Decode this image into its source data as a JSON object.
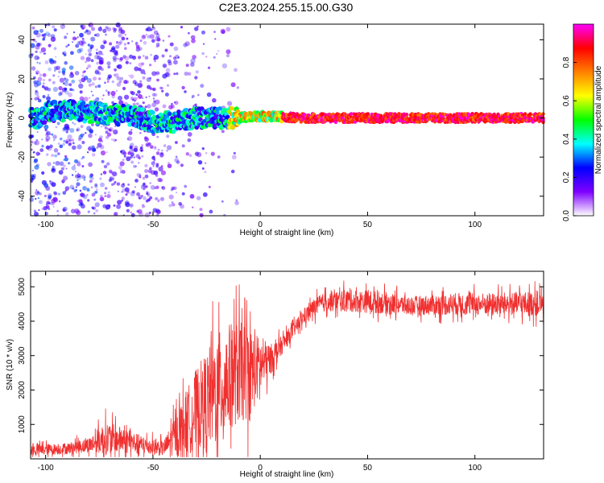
{
  "title": "C2E3.2024.255.15.00.G30",
  "chart_data": [
    {
      "type": "heatmap",
      "xlabel": "Height of straight line (km)",
      "ylabel": "Frequency (Hz)",
      "xlim": [
        -107,
        132
      ],
      "ylim": [
        -50,
        48
      ],
      "xticks": [
        -100,
        -50,
        0,
        50,
        100
      ],
      "yticks": [
        -40,
        -20,
        0,
        20,
        40
      ],
      "grid": false,
      "colorbar": {
        "label": "Normalized spectral amplitude",
        "range": [
          0,
          1
        ],
        "ticks": [
          0.0,
          0.2,
          0.4,
          0.6,
          0.8
        ],
        "tick_labels": [
          "0.0",
          "0.2",
          "0.4",
          "0.6",
          "0.8"
        ],
        "colormap": [
          "#ffffff",
          "#7f00ff",
          "#0000ff",
          "#00ffff",
          "#00ff00",
          "#ffff00",
          "#ff8000",
          "#ff0000",
          "#ff00ff"
        ]
      },
      "ridge": [
        {
          "x": -100,
          "freq": 3
        },
        {
          "x": -90,
          "freq": 4
        },
        {
          "x": -80,
          "freq": 3
        },
        {
          "x": -70,
          "freq": 2
        },
        {
          "x": -60,
          "freq": 1
        },
        {
          "x": -50,
          "freq": -2
        },
        {
          "x": -40,
          "freq": -2
        },
        {
          "x": -30,
          "freq": 0
        },
        {
          "x": -20,
          "freq": 0
        },
        {
          "x": -10,
          "freq": 0
        },
        {
          "x": 0,
          "freq": 1
        },
        {
          "x": 20,
          "freq": 0
        },
        {
          "x": 50,
          "freq": 0
        },
        {
          "x": 100,
          "freq": 0
        },
        {
          "x": 132,
          "freq": 0
        }
      ]
    },
    {
      "type": "line",
      "xlabel": "Height of straight line (km)",
      "ylabel": "SNR (10 * v/v)",
      "xlim": [
        -107,
        132
      ],
      "ylim": [
        0,
        5450
      ],
      "xticks": [
        -100,
        -50,
        0,
        50,
        100
      ],
      "yticks": [
        1000,
        2000,
        3000,
        4000,
        5000
      ],
      "grid": false,
      "series": [
        {
          "color": "#f03030",
          "envelope": [
            {
              "x": -107,
              "mean": 250,
              "amp": 300
            },
            {
              "x": -90,
              "mean": 300,
              "amp": 300
            },
            {
              "x": -80,
              "mean": 400,
              "amp": 400
            },
            {
              "x": -72,
              "mean": 600,
              "amp": 900
            },
            {
              "x": -65,
              "mean": 550,
              "amp": 700
            },
            {
              "x": -55,
              "mean": 400,
              "amp": 500
            },
            {
              "x": -45,
              "mean": 300,
              "amp": 400
            },
            {
              "x": -38,
              "mean": 800,
              "amp": 1300
            },
            {
              "x": -30,
              "mean": 1400,
              "amp": 2200
            },
            {
              "x": -20,
              "mean": 2000,
              "amp": 3000
            },
            {
              "x": -12,
              "mean": 2500,
              "amp": 2800
            },
            {
              "x": -5,
              "mean": 2500,
              "amp": 2500
            },
            {
              "x": 0,
              "mean": 2700,
              "amp": 1500
            },
            {
              "x": 5,
              "mean": 2900,
              "amp": 800
            },
            {
              "x": 10,
              "mean": 3300,
              "amp": 500
            },
            {
              "x": 15,
              "mean": 3700,
              "amp": 400
            },
            {
              "x": 20,
              "mean": 4100,
              "amp": 400
            },
            {
              "x": 25,
              "mean": 4400,
              "amp": 500
            },
            {
              "x": 30,
              "mean": 4550,
              "amp": 500
            },
            {
              "x": 40,
              "mean": 4600,
              "amp": 600
            },
            {
              "x": 55,
              "mean": 4550,
              "amp": 600
            },
            {
              "x": 70,
              "mean": 4450,
              "amp": 500
            },
            {
              "x": 90,
              "mean": 4500,
              "amp": 600
            },
            {
              "x": 110,
              "mean": 4500,
              "amp": 600
            },
            {
              "x": 132,
              "mean": 4500,
              "amp": 700
            }
          ]
        }
      ]
    }
  ]
}
